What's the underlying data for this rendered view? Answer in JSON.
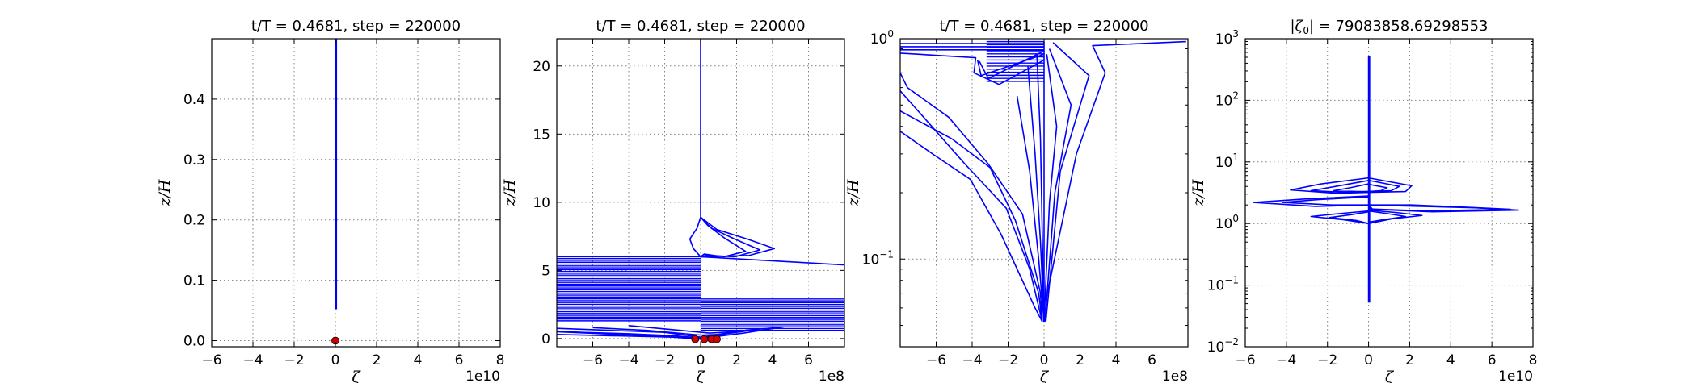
{
  "colors": {
    "line": "#0000ff",
    "marker": "#cc0000",
    "axis": "#000000",
    "grid": "#808080"
  },
  "chart_data": [
    {
      "type": "line",
      "title": "t/T = 0.4681, step = 220000",
      "xlabel": "ζ",
      "ylabel": "z/H",
      "x_exponent_label": "1e10",
      "xlim": [
        -6,
        8
      ],
      "ylim": [
        -0.01,
        0.5
      ],
      "yscale": "linear",
      "grid": true,
      "xticks": [
        -6,
        -4,
        -2,
        0,
        2,
        4,
        6,
        8
      ],
      "xtick_labels": [
        "−6",
        "−4",
        "−2",
        "0",
        "2",
        "4",
        "6",
        "8"
      ],
      "yticks": [
        0.0,
        0.1,
        0.2,
        0.3,
        0.4
      ],
      "ytick_labels": [
        "0.0",
        "0.1",
        "0.2",
        "0.3",
        "0.4"
      ],
      "series": [
        {
          "kind": "line",
          "x": [
            0,
            0
          ],
          "y": [
            0.052,
            0.5
          ]
        },
        {
          "kind": "line",
          "x": [
            0.05,
            0.05
          ],
          "y": [
            0.052,
            0.5
          ]
        }
      ],
      "markers": {
        "x": [
          0.0
        ],
        "y": [
          0.0
        ]
      }
    },
    {
      "type": "line",
      "title": "t/T = 0.4681, step = 220000",
      "xlabel": "ζ",
      "ylabel": "z/H",
      "x_exponent_label": "1e8",
      "xlim": [
        -8,
        8
      ],
      "ylim": [
        -0.6,
        22
      ],
      "yscale": "linear",
      "grid": true,
      "xticks": [
        -6,
        -4,
        -2,
        0,
        2,
        4,
        6
      ],
      "xtick_labels": [
        "−6",
        "−4",
        "−2",
        "0",
        "2",
        "4",
        "6"
      ],
      "yticks": [
        0,
        5,
        10,
        15,
        20
      ],
      "ytick_labels": [
        "0",
        "5",
        "10",
        "15",
        "20"
      ],
      "series": [
        {
          "kind": "line",
          "x": [
            0,
            0
          ],
          "y": [
            8.8,
            22
          ]
        },
        {
          "kind": "line",
          "x": [
            0,
            0.9,
            2.6,
            4.1,
            2.7,
            0.5,
            0
          ],
          "y": [
            8.9,
            8.0,
            7.3,
            6.6,
            6.1,
            6.0,
            6.0
          ]
        },
        {
          "kind": "line",
          "x": [
            0,
            0.6,
            1.9,
            3.3,
            1.9,
            0.3,
            0
          ],
          "y": [
            8.9,
            8.1,
            7.3,
            6.5,
            6.0,
            6.1,
            6.0
          ]
        },
        {
          "kind": "line",
          "x": [
            0,
            0.4,
            1.3,
            2.5,
            1.3,
            0.2,
            0
          ],
          "y": [
            8.9,
            8.3,
            7.4,
            6.4,
            6.0,
            6.2,
            6.0
          ]
        },
        {
          "kind": "line",
          "x": [
            0,
            -0.2,
            -0.6,
            -0.4,
            0
          ],
          "y": [
            8.9,
            8.1,
            7.3,
            6.6,
            6.0
          ]
        },
        {
          "kind": "line",
          "x": [
            0,
            8
          ],
          "y": [
            6.0,
            5.4
          ]
        },
        {
          "kind": "band",
          "x_from": -8,
          "x_to": 0,
          "y_from": 1.3,
          "y_to": 6.0,
          "count": 36
        },
        {
          "kind": "band",
          "x_from": 0,
          "x_to": 8,
          "y_from": 0.6,
          "y_to": 2.9,
          "count": 18
        },
        {
          "kind": "line",
          "x": [
            -8,
            -6.5,
            -4,
            -1.5,
            0,
            1.8,
            3.2,
            1.2,
            0,
            -1.5,
            -8
          ],
          "y": [
            0.55,
            0.45,
            0.35,
            0.2,
            0.05,
            0.5,
            0.7,
            0.3,
            -0.05,
            0.1,
            0.3
          ]
        },
        {
          "kind": "line",
          "x": [
            -8,
            -5,
            -2,
            0,
            2.5,
            4.6,
            2.4,
            0,
            -2,
            -8
          ],
          "y": [
            0.75,
            0.6,
            0.45,
            0.1,
            0.6,
            0.85,
            0.4,
            0.0,
            0.15,
            0.5
          ]
        },
        {
          "kind": "line",
          "x": [
            -6,
            -3,
            0,
            1,
            2.5,
            0.5,
            -4
          ],
          "y": [
            0.8,
            0.6,
            0.25,
            0.3,
            0.55,
            0.4,
            0.95
          ]
        }
      ],
      "markers": {
        "x": [
          -0.3,
          0.2,
          0.6,
          0.9
        ],
        "y": [
          -0.05,
          -0.05,
          -0.05,
          -0.05
        ]
      }
    },
    {
      "type": "line",
      "title": "t/T = 0.4681, step = 220000",
      "xlabel": "ζ",
      "ylabel": "z/H",
      "x_exponent_label": "1e8",
      "xlim": [
        -8,
        8
      ],
      "ylim": [
        0.04,
        1.0
      ],
      "yscale": "log",
      "grid": true,
      "xticks": [
        -6,
        -4,
        -2,
        0,
        2,
        4,
        6
      ],
      "xtick_labels": [
        "−6",
        "−4",
        "−2",
        "0",
        "2",
        "4",
        "6"
      ],
      "yticks": [
        0.1,
        1.0
      ],
      "ytick_base": [
        "10",
        "10"
      ],
      "ytick_exp": [
        "−1",
        "0"
      ],
      "series": [
        {
          "kind": "line",
          "x": [
            -8,
            0
          ],
          "y": [
            0.95,
            0.95
          ]
        },
        {
          "kind": "line",
          "x": [
            -8,
            0
          ],
          "y": [
            0.92,
            0.92
          ]
        },
        {
          "kind": "line",
          "x": [
            -8,
            0
          ],
          "y": [
            0.89,
            0.89
          ]
        },
        {
          "kind": "line",
          "x": [
            -8,
            -3.8,
            -3.9,
            -2.5,
            0
          ],
          "y": [
            0.86,
            0.82,
            0.7,
            0.62,
            0.8
          ]
        },
        {
          "kind": "line",
          "x": [
            -3.7,
            -3.5,
            0
          ],
          "y": [
            0.8,
            0.68,
            0.85
          ]
        },
        {
          "kind": "line",
          "x": [
            -3.6,
            -3.1,
            0
          ],
          "y": [
            0.79,
            0.66,
            0.88
          ]
        },
        {
          "kind": "band",
          "x_from": -3.2,
          "x_to": 0,
          "y_from": 0.64,
          "y_to": 0.97,
          "count": 14,
          "log": true
        },
        {
          "kind": "line",
          "x": [
            -8,
            -6.2,
            -4.1,
            -2.4,
            -0.5,
            -0.1
          ],
          "y": [
            0.38,
            0.3,
            0.23,
            0.13,
            0.06,
            0.052
          ]
        },
        {
          "kind": "line",
          "x": [
            -8,
            -5.1,
            -3.0,
            -1.6,
            -0.3,
            -0.1
          ],
          "y": [
            0.47,
            0.35,
            0.26,
            0.15,
            0.07,
            0.052
          ]
        },
        {
          "kind": "line",
          "x": [
            -8,
            -6.8,
            -4.4,
            -2.1,
            -0.8,
            -0.1
          ],
          "y": [
            0.58,
            0.45,
            0.27,
            0.17,
            0.09,
            0.052
          ]
        },
        {
          "kind": "line",
          "x": [
            -8,
            -7.6,
            -5.3,
            -3.1,
            -1.2,
            -0.2,
            -0.1
          ],
          "y": [
            0.7,
            0.6,
            0.44,
            0.27,
            0.16,
            0.07,
            0.052
          ]
        },
        {
          "kind": "line",
          "x": [
            -1.5,
            -0.8,
            -0.3,
            0
          ],
          "y": [
            0.55,
            0.25,
            0.1,
            0.052
          ]
        },
        {
          "kind": "line",
          "x": [
            -0.9,
            -0.5,
            -0.2,
            0
          ],
          "y": [
            0.75,
            0.3,
            0.12,
            0.052
          ]
        },
        {
          "kind": "line",
          "x": [
            -0.4,
            -0.2,
            -0.1,
            0
          ],
          "y": [
            0.85,
            0.35,
            0.13,
            0.052
          ]
        },
        {
          "kind": "line",
          "x": [
            0,
            0
          ],
          "y": [
            0.052,
            0.97
          ]
        },
        {
          "kind": "line",
          "x": [
            0.1,
            0.9,
            2.5,
            0.5
          ],
          "y": [
            0.052,
            0.25,
            0.68,
            0.96
          ]
        },
        {
          "kind": "line",
          "x": [
            0.05,
            0.6,
            1.5,
            0.3
          ],
          "y": [
            0.052,
            0.2,
            0.5,
            0.9
          ]
        },
        {
          "kind": "line",
          "x": [
            0,
            0.3,
            0.7,
            0.15
          ],
          "y": [
            0.052,
            0.18,
            0.4,
            0.85
          ]
        },
        {
          "kind": "line",
          "x": [
            0.1,
            1.8,
            3.4,
            2.7,
            7.9
          ],
          "y": [
            0.065,
            0.3,
            0.7,
            0.93,
            0.97
          ]
        }
      ],
      "markers": {
        "x": [],
        "y": []
      }
    },
    {
      "type": "line",
      "title": "|ζ₀| = 79083858.69298553",
      "title_prefix": "|ζ",
      "title_subscript": "0",
      "title_suffix": "| = 79083858.69298553",
      "xlabel": "ζ",
      "ylabel": "z/H",
      "x_exponent_label": "1e10",
      "xlim": [
        -6,
        8
      ],
      "ylim": [
        0.01,
        1000
      ],
      "yscale": "log",
      "grid": true,
      "xticks": [
        -6,
        -4,
        -2,
        0,
        2,
        4,
        6,
        8
      ],
      "xtick_labels": [
        "−6",
        "−4",
        "−2",
        "0",
        "2",
        "4",
        "6",
        "8"
      ],
      "yticks": [
        0.01,
        0.1,
        1,
        10,
        100,
        1000
      ],
      "ytick_base": [
        "10",
        "10",
        "10",
        "10",
        "10",
        "10"
      ],
      "ytick_exp": [
        "−2",
        "−1",
        "0",
        "1",
        "2",
        "3"
      ],
      "series": [
        {
          "kind": "line",
          "x": [
            0,
            0
          ],
          "y": [
            0.052,
            520
          ]
        },
        {
          "kind": "line",
          "x": [
            0.05,
            0.05
          ],
          "y": [
            0.052,
            520
          ]
        },
        {
          "kind": "line",
          "x": [
            0,
            -2.3,
            -3.8,
            -1.6,
            0,
            1.8,
            2.1,
            0.4,
            0
          ],
          "y": [
            5.5,
            4.4,
            3.5,
            3.1,
            3.2,
            3.3,
            4.1,
            5.2,
            5.5
          ]
        },
        {
          "kind": "line",
          "x": [
            0,
            -1.6,
            -2.8,
            -1.1,
            0,
            1.1,
            1.5,
            0.3,
            0
          ],
          "y": [
            5.0,
            4.0,
            3.4,
            3.2,
            3.3,
            3.4,
            4.0,
            4.8,
            5.0
          ]
        },
        {
          "kind": "line",
          "x": [
            0,
            -0.9,
            -1.7,
            -0.5,
            0,
            0.6,
            0.9,
            0.2,
            0
          ],
          "y": [
            4.4,
            3.8,
            3.4,
            3.3,
            3.3,
            3.4,
            3.8,
            4.2,
            4.4
          ]
        },
        {
          "kind": "line",
          "x": [
            0,
            -3.1,
            -5.6,
            -2.6,
            0,
            2.6,
            5.2,
            7.3,
            3.1,
            0.2,
            0
          ],
          "y": [
            2.8,
            2.5,
            2.2,
            1.9,
            2.0,
            1.9,
            1.8,
            1.65,
            1.55,
            1.7,
            2.0
          ]
        },
        {
          "kind": "line",
          "x": [
            0,
            -2.4,
            -4.2,
            -1.8,
            0,
            2.1,
            4.6,
            6.9,
            2.7,
            0.1,
            0
          ],
          "y": [
            2.7,
            2.45,
            2.2,
            2.0,
            2.0,
            2.0,
            1.85,
            1.7,
            1.6,
            1.72,
            2.0
          ]
        },
        {
          "kind": "line",
          "x": [
            0,
            -1.4,
            -2.8,
            -1.2,
            0
          ],
          "y": [
            1.6,
            1.45,
            1.3,
            1.15,
            1.0
          ]
        },
        {
          "kind": "line",
          "x": [
            0,
            -0.8,
            -1.9,
            -0.6,
            0
          ],
          "y": [
            1.55,
            1.4,
            1.25,
            1.12,
            1.0
          ]
        },
        {
          "kind": "line",
          "x": [
            0,
            0.9,
            1.8,
            0.7,
            0
          ],
          "y": [
            1.6,
            1.45,
            1.3,
            1.15,
            1.05
          ]
        },
        {
          "kind": "line",
          "x": [
            0,
            1.4,
            2.6,
            1.2,
            0
          ],
          "y": [
            1.65,
            1.5,
            1.35,
            1.2,
            1.0
          ]
        }
      ],
      "markers": {
        "x": [],
        "y": []
      }
    }
  ]
}
